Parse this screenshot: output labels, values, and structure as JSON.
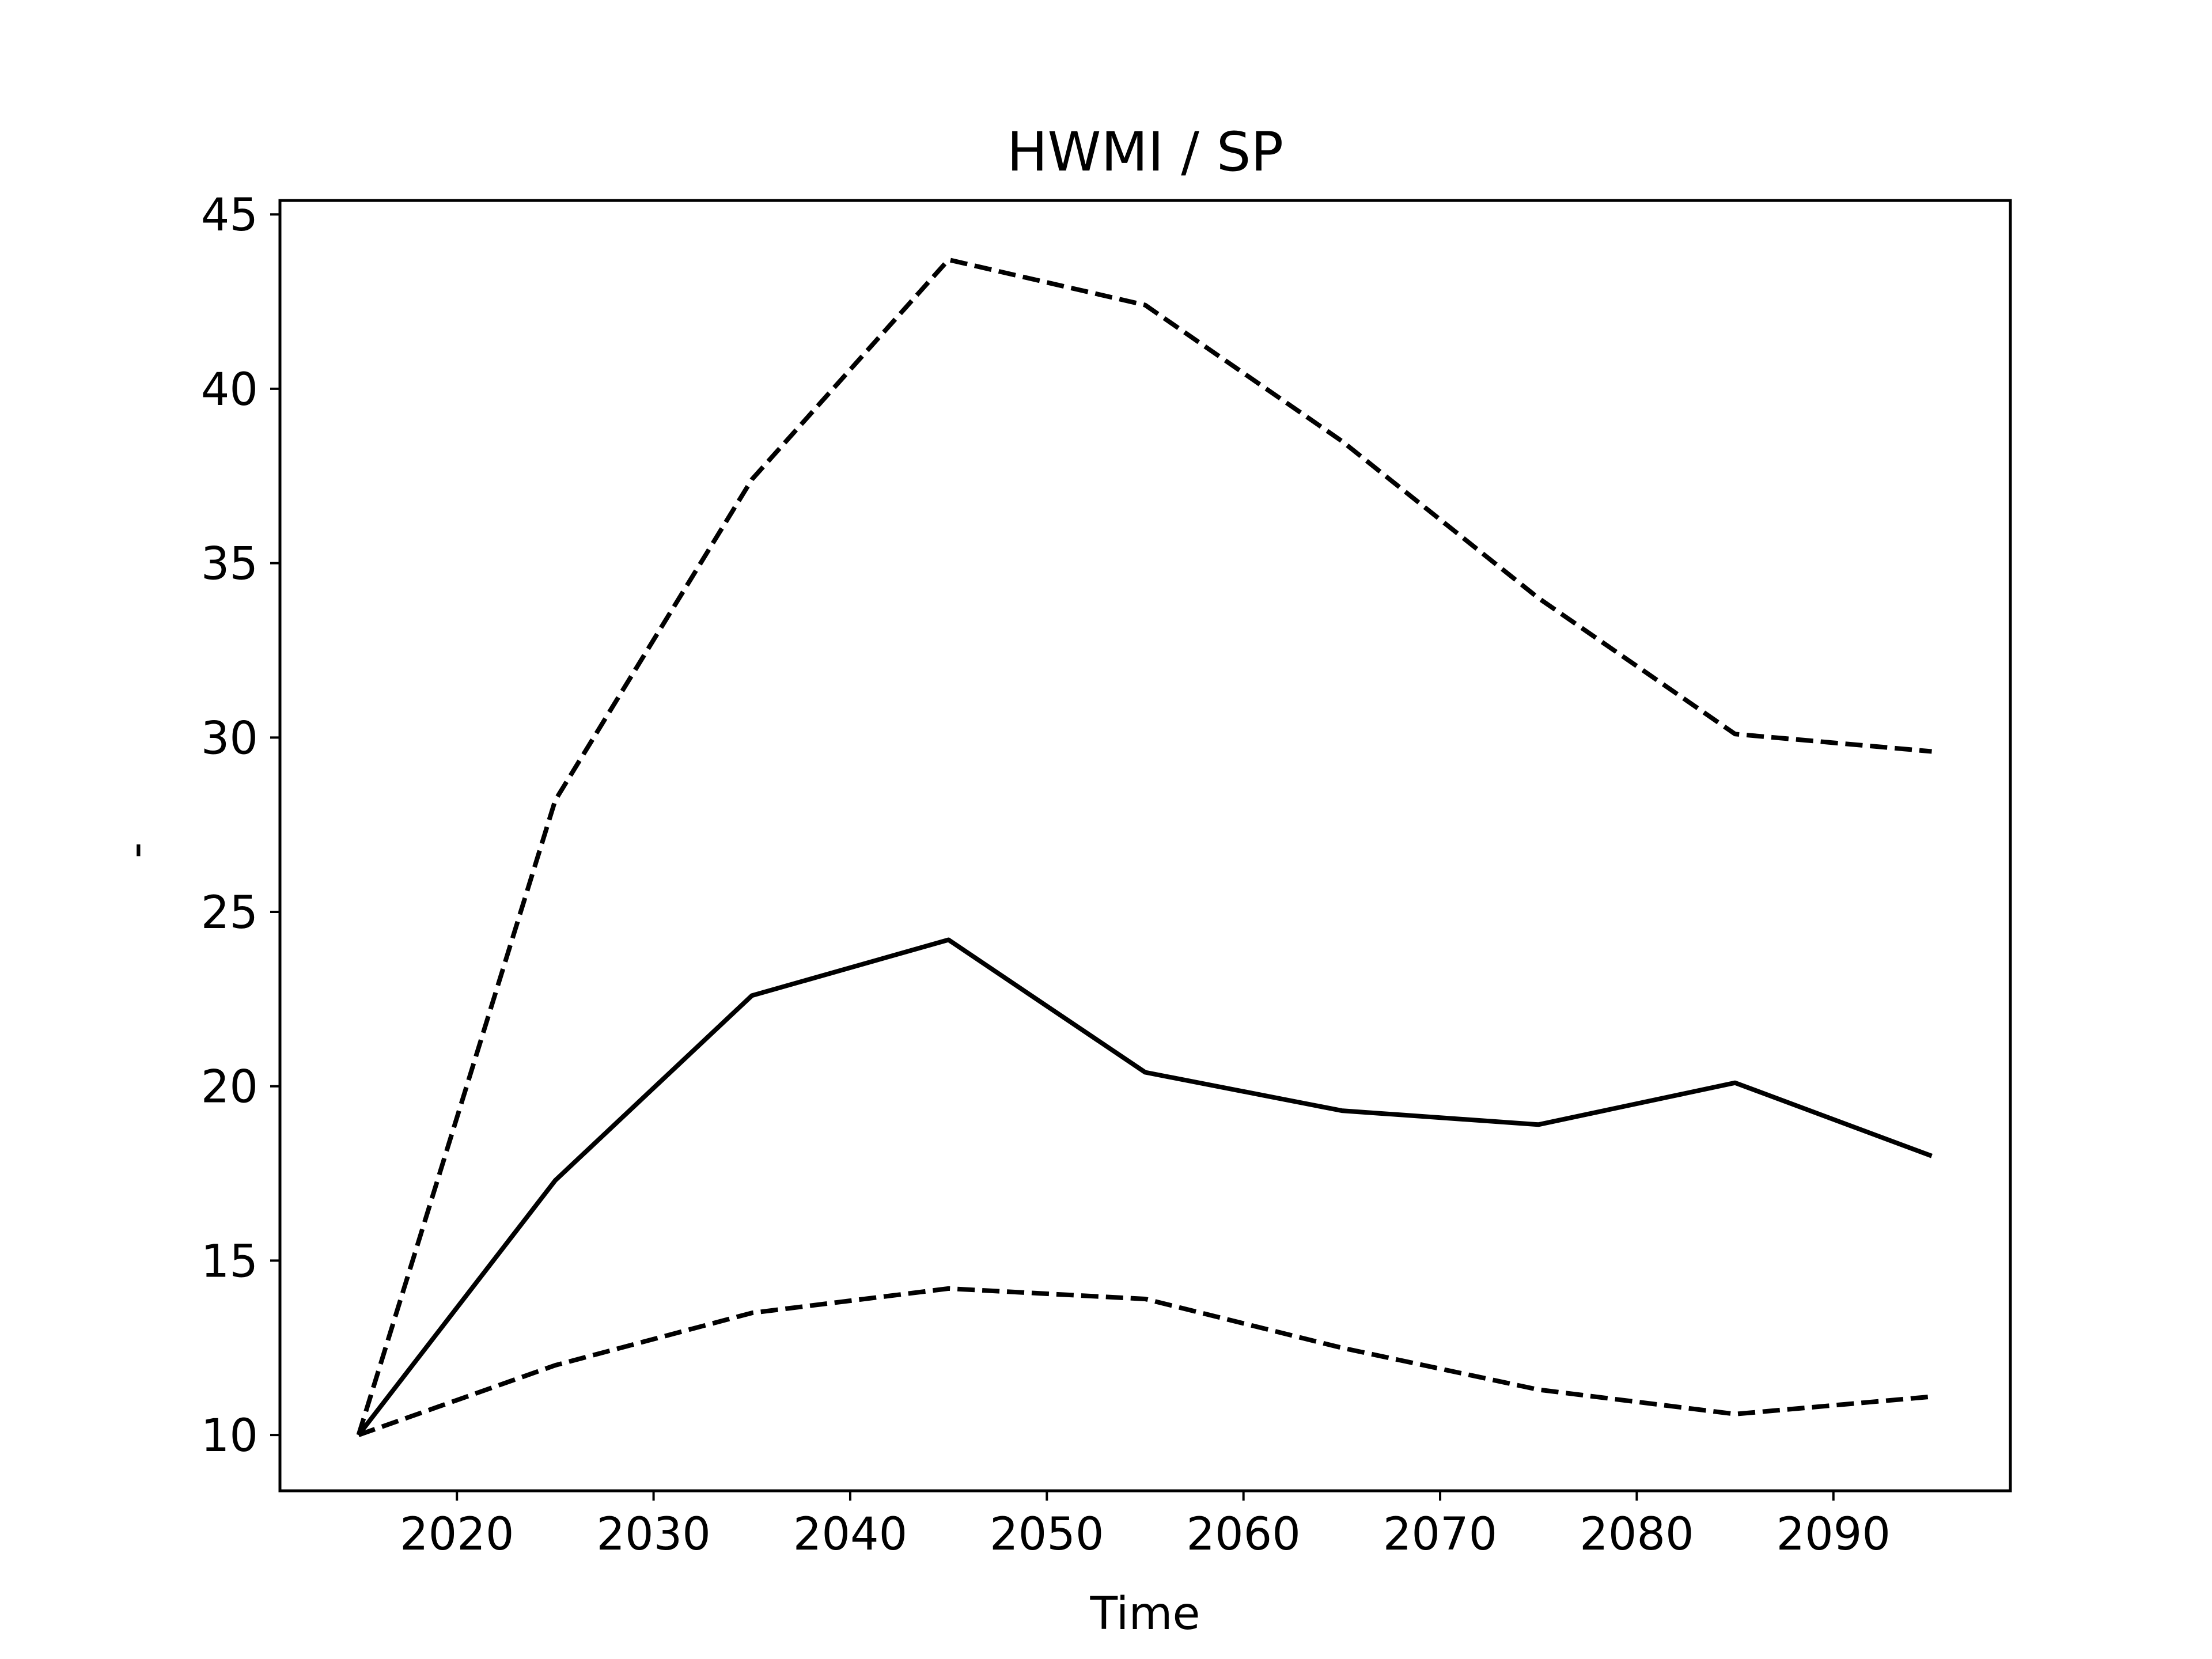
{
  "chart_data": {
    "type": "line",
    "title": "HWMI / SP",
    "xlabel": "Time",
    "ylabel": "-",
    "xlim": [
      2011.0,
      2099.0
    ],
    "ylim": [
      8.4,
      45.4
    ],
    "xticks": [
      2020,
      2030,
      2040,
      2050,
      2060,
      2070,
      2080,
      2090
    ],
    "yticks": [
      10,
      15,
      20,
      25,
      30,
      35,
      40,
      45
    ],
    "grid": false,
    "legend": "none",
    "x": [
      2015,
      2025,
      2035,
      2045,
      2055,
      2065,
      2075,
      2085,
      2095
    ],
    "series": [
      {
        "style": "solid",
        "color": "#000000",
        "values": [
          10.0,
          17.3,
          22.6,
          24.2,
          20.4,
          19.3,
          18.9,
          20.1,
          18.0
        ]
      },
      {
        "style": "dashed",
        "color": "#000000",
        "values": [
          10.0,
          28.2,
          37.4,
          43.7,
          42.4,
          38.5,
          34.0,
          30.1,
          29.6
        ]
      },
      {
        "style": "dashed",
        "color": "#000000",
        "values": [
          10.0,
          12.0,
          13.5,
          14.2,
          13.9,
          12.5,
          11.3,
          10.6,
          11.1
        ]
      }
    ]
  }
}
